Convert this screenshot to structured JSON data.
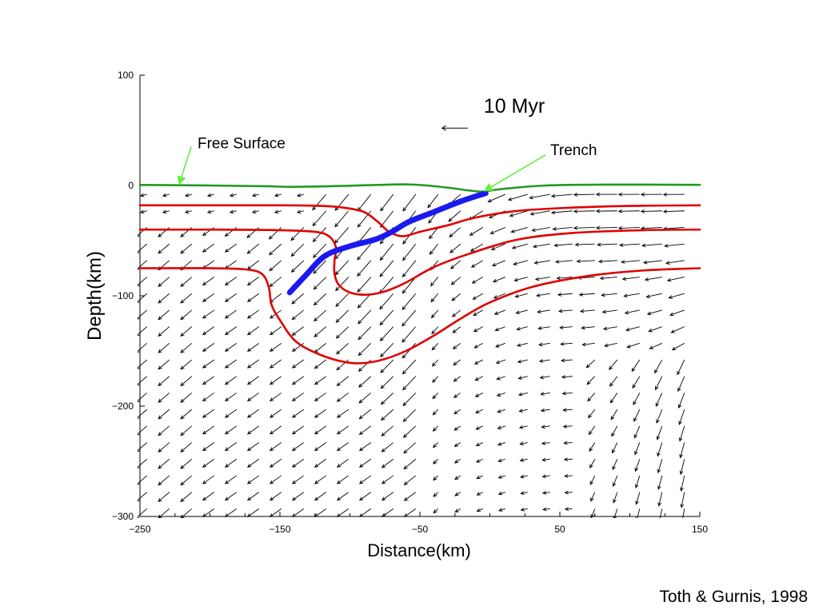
{
  "citation": "Toth & Gurnis, 1998",
  "chart_data": {
    "type": "line",
    "title": "",
    "xlabel": "Distance(km)",
    "ylabel": "Depth(km)",
    "xlim": [
      -250,
      150
    ],
    "ylim": [
      -300,
      100
    ],
    "x_ticks": [
      -250,
      -150,
      -50,
      50,
      150
    ],
    "y_ticks": [
      100,
      0,
      -100,
      -200,
      -300
    ],
    "x_tick_labels": [
      "−250",
      "−150",
      "−50",
      "50",
      "150"
    ],
    "y_tick_labels": [
      "100",
      "0",
      "−100",
      "−200",
      "−300"
    ],
    "grid": false,
    "time_label": "10 Myr",
    "annotations": [
      {
        "text": "Free Surface",
        "x": -210,
        "y": 38,
        "arrow_to": [
          -222,
          1
        ]
      },
      {
        "text": "Trench",
        "x": 42,
        "y": 32,
        "arrow_to": [
          -4,
          -5
        ]
      }
    ],
    "colors": {
      "free_surface": "#229922",
      "layer_boundary": "#e00000",
      "fault": "#1a1aee",
      "velocity": "#000000",
      "annotation_arrow": "#66ee44"
    },
    "series": [
      {
        "role": "free_surface",
        "points": [
          [
            -250,
            0.5
          ],
          [
            -200,
            0
          ],
          [
            -160,
            -0.7
          ],
          [
            -140,
            -1.2
          ],
          [
            -100,
            -0.2
          ],
          [
            -80,
            0.5
          ],
          [
            -60,
            1
          ],
          [
            -45,
            0
          ],
          [
            -30,
            -2
          ],
          [
            -15,
            -4.5
          ],
          [
            -5,
            -5.5
          ],
          [
            10,
            -3
          ],
          [
            40,
            0
          ],
          [
            80,
            0.8
          ],
          [
            150,
            0.6
          ]
        ]
      },
      {
        "role": "layer_boundary",
        "points": [
          [
            -250,
            -18
          ],
          [
            -200,
            -18
          ],
          [
            -150,
            -18
          ],
          [
            -120,
            -18.5
          ],
          [
            -105,
            -20
          ],
          [
            -90,
            -24
          ],
          [
            -80,
            -33
          ],
          [
            -72,
            -42
          ],
          [
            -62,
            -46
          ],
          [
            -50,
            -42
          ],
          [
            -30,
            -36
          ],
          [
            -10,
            -29
          ],
          [
            20,
            -23
          ],
          [
            60,
            -20
          ],
          [
            100,
            -18.5
          ],
          [
            150,
            -18
          ]
        ]
      },
      {
        "role": "layer_boundary",
        "points": [
          [
            -250,
            -40
          ],
          [
            -200,
            -40
          ],
          [
            -150,
            -40.5
          ],
          [
            -125,
            -42
          ],
          [
            -115,
            -46
          ],
          [
            -110,
            -56
          ],
          [
            -111,
            -68
          ],
          [
            -111,
            -80
          ],
          [
            -108,
            -90
          ],
          [
            -100,
            -97
          ],
          [
            -88,
            -99
          ],
          [
            -75,
            -96
          ],
          [
            -60,
            -88
          ],
          [
            -40,
            -74
          ],
          [
            -15,
            -62
          ],
          [
            20,
            -49
          ],
          [
            60,
            -43
          ],
          [
            110,
            -40.5
          ],
          [
            150,
            -40
          ]
        ]
      },
      {
        "role": "layer_boundary",
        "points": [
          [
            -250,
            -75
          ],
          [
            -200,
            -75
          ],
          [
            -175,
            -76
          ],
          [
            -163,
            -80
          ],
          [
            -158,
            -92
          ],
          [
            -156,
            -108
          ],
          [
            -150,
            -122
          ],
          [
            -138,
            -142
          ],
          [
            -118,
            -155
          ],
          [
            -98,
            -161
          ],
          [
            -80,
            -159
          ],
          [
            -60,
            -150
          ],
          [
            -40,
            -136
          ],
          [
            -20,
            -120
          ],
          [
            0,
            -106
          ],
          [
            30,
            -92
          ],
          [
            70,
            -82
          ],
          [
            110,
            -77
          ],
          [
            150,
            -75
          ]
        ]
      },
      {
        "role": "fault",
        "points": [
          [
            -143,
            -97
          ],
          [
            -132,
            -82
          ],
          [
            -118,
            -64
          ],
          [
            -100,
            -55
          ],
          [
            -82,
            -49
          ],
          [
            -70,
            -42
          ],
          [
            -58,
            -33
          ],
          [
            -40,
            -24
          ],
          [
            -20,
            -14
          ],
          [
            -3,
            -7
          ]
        ]
      }
    ],
    "velocity_arrows": {
      "direction_note": "arrows show flow velocity field",
      "scale_arrow": {
        "x": -25,
        "y": 52,
        "u": -1,
        "v": 0
      }
    }
  }
}
